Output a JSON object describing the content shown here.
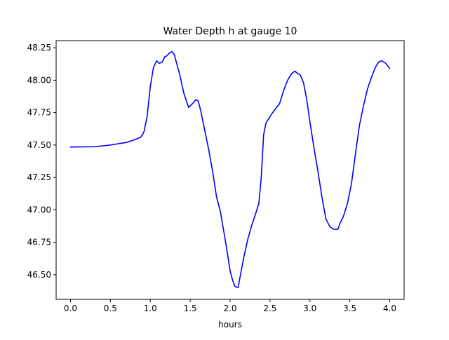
{
  "chart_data": {
    "type": "line",
    "title": "Water Depth h at gauge 10",
    "xlabel": "hours",
    "ylabel": "",
    "xlim": [
      -0.18,
      4.18
    ],
    "ylim": [
      46.31,
      48.305
    ],
    "xticks": [
      0.0,
      0.5,
      1.0,
      1.5,
      2.0,
      2.5,
      3.0,
      3.5,
      4.0
    ],
    "xtick_labels": [
      "0.0",
      "0.5",
      "1.0",
      "1.5",
      "2.0",
      "2.5",
      "3.0",
      "3.5",
      "4.0"
    ],
    "yticks": [
      46.5,
      46.75,
      47.0,
      47.25,
      47.5,
      47.75,
      48.0,
      48.25
    ],
    "ytick_labels": [
      "46.50",
      "46.75",
      "47.00",
      "47.25",
      "47.50",
      "47.75",
      "48.00",
      "48.25"
    ],
    "grid": false,
    "series": [
      {
        "name": "",
        "color": "#0000ff",
        "x": [
          0.0,
          0.3,
          0.5,
          0.7,
          0.8,
          0.88,
          0.92,
          0.96,
          1.0,
          1.04,
          1.08,
          1.11,
          1.15,
          1.18,
          1.21,
          1.24,
          1.27,
          1.3,
          1.33,
          1.37,
          1.42,
          1.48,
          1.53,
          1.57,
          1.6,
          1.63,
          1.68,
          1.73,
          1.78,
          1.83,
          1.88,
          1.93,
          1.97,
          2.0,
          2.03,
          2.06,
          2.1,
          2.13,
          2.17,
          2.22,
          2.27,
          2.32,
          2.36,
          2.39,
          2.42,
          2.45,
          2.48,
          2.52,
          2.57,
          2.62,
          2.67,
          2.72,
          2.77,
          2.81,
          2.85,
          2.88,
          2.92,
          2.96,
          3.0,
          3.05,
          3.1,
          3.15,
          3.2,
          3.25,
          3.3,
          3.35,
          3.38,
          3.42,
          3.47,
          3.52,
          3.57,
          3.62,
          3.67,
          3.72,
          3.77,
          3.82,
          3.86,
          3.9,
          3.95,
          4.0
        ],
        "y": [
          47.485,
          47.487,
          47.5,
          47.52,
          47.54,
          47.56,
          47.6,
          47.72,
          47.95,
          48.1,
          48.15,
          48.13,
          48.14,
          48.18,
          48.19,
          48.21,
          48.22,
          48.2,
          48.13,
          48.04,
          47.9,
          47.79,
          47.82,
          47.85,
          47.84,
          47.77,
          47.62,
          47.47,
          47.3,
          47.1,
          46.98,
          46.8,
          46.65,
          46.53,
          46.46,
          46.41,
          46.4,
          46.5,
          46.63,
          46.77,
          46.88,
          46.97,
          47.05,
          47.25,
          47.58,
          47.67,
          47.7,
          47.74,
          47.78,
          47.82,
          47.92,
          48.0,
          48.05,
          48.07,
          48.05,
          48.04,
          47.98,
          47.85,
          47.68,
          47.48,
          47.3,
          47.1,
          46.93,
          46.87,
          46.85,
          46.85,
          46.9,
          46.95,
          47.05,
          47.2,
          47.43,
          47.65,
          47.8,
          47.93,
          48.02,
          48.1,
          48.14,
          48.15,
          48.13,
          48.09
        ]
      }
    ]
  }
}
